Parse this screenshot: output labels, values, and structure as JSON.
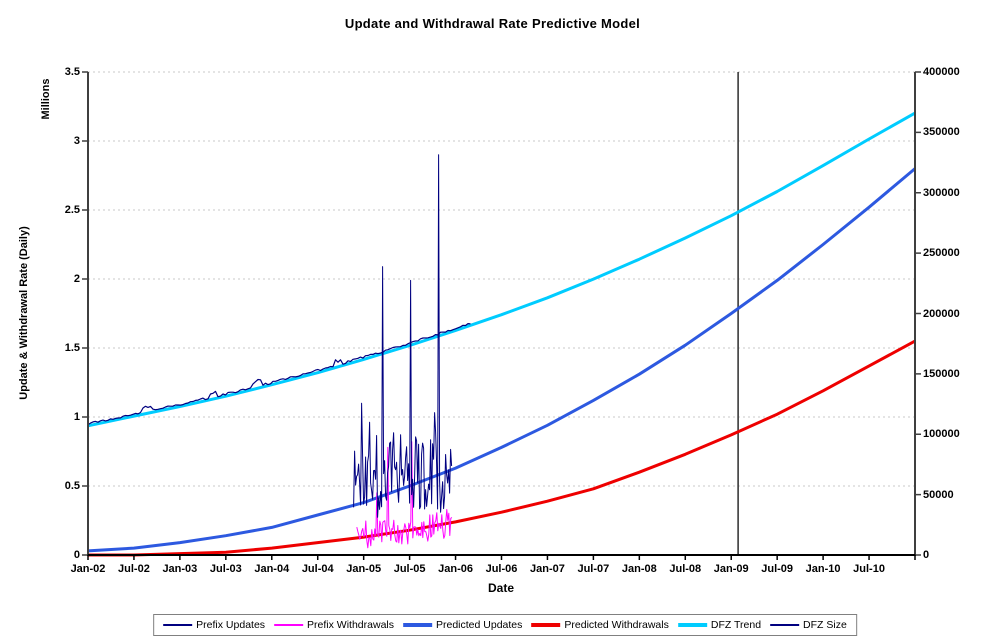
{
  "chart_data": {
    "type": "line",
    "title": "Update and Withdrawal Rate Predictive Model",
    "xlabel": "Date",
    "ylabel_left": "Update & Withdrawal Rate (Daily)",
    "ylabel_left_units": "Millions",
    "ylim_left": [
      0,
      3.5
    ],
    "yticks_left": [
      "0",
      "0.5",
      "1",
      "1.5",
      "2",
      "2.5",
      "3",
      "3.5"
    ],
    "ylim_right": [
      0,
      400000
    ],
    "yticks_right": [
      "0",
      "50000",
      "100000",
      "150000",
      "200000",
      "250000",
      "300000",
      "350000",
      "400000"
    ],
    "x_tick_labels": [
      "Jan-02",
      "Jul-02",
      "Jan-03",
      "Jul-03",
      "Jan-04",
      "Jul-04",
      "Jan-05",
      "Jul-05",
      "Jan-06",
      "Jul-06",
      "Jan-07",
      "Jul-07",
      "Jan-08",
      "Jul-08",
      "Jan-09",
      "Jul-09",
      "Jan-10",
      "Jul-10"
    ],
    "x_halfyear_steps": 18,
    "grid": "horizontal-dotted",
    "gridline_color": "#c8c8c8",
    "axis_color": "#3f3f3f",
    "marker_line": {
      "at": "Jan-09",
      "t": 14.15,
      "color": "#3a3a3a"
    },
    "series": [
      {
        "name": "Predicted Withdrawals",
        "axis": "left",
        "style": "smooth",
        "color": "#ee0000",
        "width": 3,
        "z": 1,
        "values": [
          0.0,
          0.0,
          0.01,
          0.02,
          0.05,
          0.09,
          0.13,
          0.18,
          0.24,
          0.31,
          0.39,
          0.48,
          0.6,
          0.73,
          0.87,
          1.02,
          1.19,
          1.37,
          1.55
        ]
      },
      {
        "name": "Predicted Updates",
        "axis": "left",
        "style": "smooth",
        "color": "#2d59e0",
        "width": 3,
        "z": 2,
        "values": [
          0.03,
          0.05,
          0.09,
          0.14,
          0.2,
          0.29,
          0.38,
          0.5,
          0.63,
          0.78,
          0.94,
          1.12,
          1.31,
          1.52,
          1.75,
          1.99,
          2.25,
          2.52,
          2.8
        ]
      },
      {
        "name": "DFZ Trend",
        "axis": "right",
        "style": "smooth",
        "color": "#00ccff",
        "width": 3,
        "z": 3,
        "values": [
          107000,
          115000,
          123000,
          131500,
          141000,
          151000,
          162000,
          173500,
          186000,
          199000,
          213000,
          228500,
          245000,
          262500,
          281000,
          301000,
          322500,
          344500,
          366000
        ]
      },
      {
        "name": "DFZ Size",
        "axis": "right",
        "style": "noisy-follow",
        "color": "#000080",
        "width": 1.2,
        "z": 4,
        "t_range": [
          0,
          8.35
        ],
        "follows": "DFZ Trend",
        "offset": 1800,
        "bump": 4500,
        "noise": 900,
        "seed": 77
      },
      {
        "name": "Prefix Withdrawals",
        "axis": "left",
        "style": "noisy",
        "color": "#ff00ff",
        "width": 1,
        "z": 5,
        "t_range": [
          5.85,
          7.93
        ],
        "band": [
          0.07,
          0.27
        ],
        "mean_start": 0.14,
        "mean_end": 0.21,
        "seed": 2024,
        "spikes": [
          [
            6.28,
            0.45
          ],
          [
            6.52,
            0.78
          ],
          [
            7.05,
            0.82
          ]
        ]
      },
      {
        "name": "Prefix Updates",
        "axis": "left",
        "style": "noisy",
        "color": "#000080",
        "width": 1,
        "z": 6,
        "t_range": [
          5.78,
          7.93
        ],
        "band": [
          0.33,
          0.98
        ],
        "mean_start": 0.55,
        "mean_end": 0.63,
        "seed": 1337,
        "spikes": [
          [
            5.96,
            1.1
          ],
          [
            6.42,
            2.09
          ],
          [
            7.03,
            1.99
          ],
          [
            7.62,
            2.9
          ]
        ]
      }
    ],
    "legend": {
      "position": "bottom",
      "items": [
        {
          "label": "Prefix Updates",
          "color": "#000080",
          "thick": false
        },
        {
          "label": "Prefix Withdrawals",
          "color": "#ff00ff",
          "thick": false
        },
        {
          "label": "Predicted Updates",
          "color": "#2d59e0",
          "thick": true
        },
        {
          "label": "Predicted Withdrawals",
          "color": "#ee0000",
          "thick": true
        },
        {
          "label": "DFZ Trend",
          "color": "#00ccff",
          "thick": true
        },
        {
          "label": "DFZ Size",
          "color": "#000080",
          "thick": false
        }
      ]
    }
  }
}
